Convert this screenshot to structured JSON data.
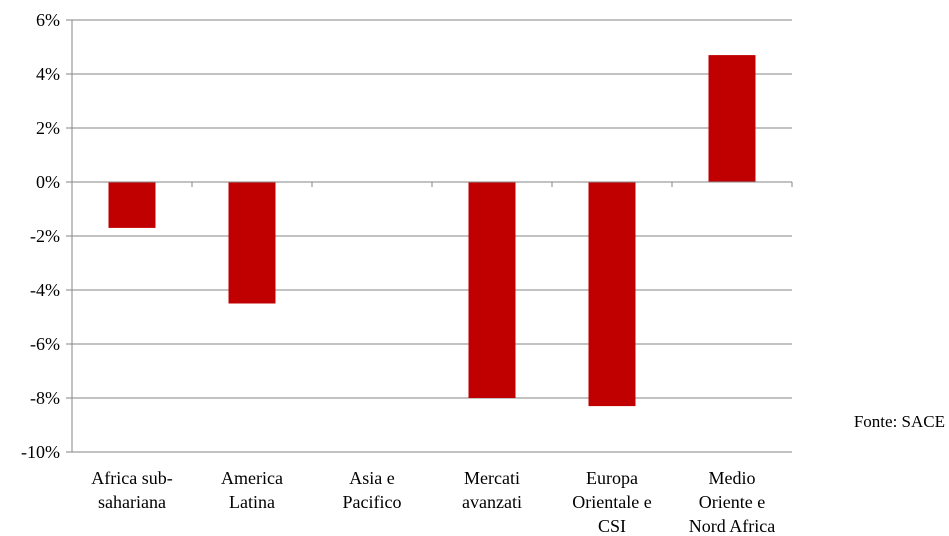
{
  "chart_data": {
    "type": "bar",
    "categories": [
      [
        "Africa sub-",
        "sahariana"
      ],
      [
        "America",
        "Latina"
      ],
      [
        "Asia e",
        "Pacifico"
      ],
      [
        "Mercati",
        "avanzati"
      ],
      [
        "Europa",
        "Orientale e",
        "CSI"
      ],
      [
        "Medio",
        "Oriente e",
        "Nord Africa"
      ]
    ],
    "values": [
      -1.7,
      -4.5,
      0,
      -8.0,
      -8.3,
      4.7
    ],
    "ylim": [
      -10,
      6
    ],
    "yticks": [
      6,
      4,
      2,
      0,
      -2,
      -4,
      -6,
      -8,
      -10
    ],
    "ytick_labels": [
      "6%",
      "4%",
      "2%",
      "0%",
      "-2%",
      "-4%",
      "-6%",
      "-8%",
      "-10%"
    ],
    "grid": true,
    "colors": {
      "bar": "#c00000",
      "grid": "#868686",
      "axis": "#868686",
      "text": "#000000"
    }
  },
  "source_note": "Fonte: SACE"
}
